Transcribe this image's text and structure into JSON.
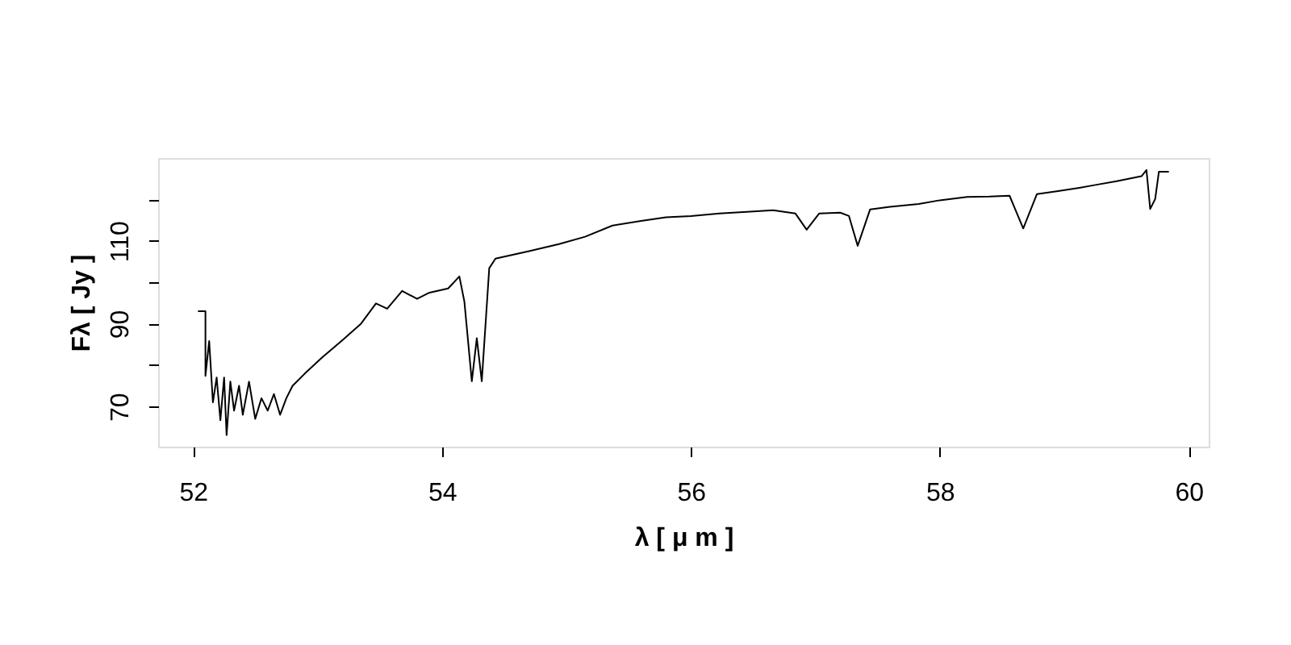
{
  "chart_data": {
    "type": "line",
    "xlabel": "λ [ μ m ]",
    "ylabel": "Fλ [ Jy ]",
    "xlim": [
      51.72,
      60.16
    ],
    "xticks": [
      52,
      54,
      56,
      58,
      60
    ],
    "ylim": [
      60.3,
      130
    ],
    "yticks": [
      70,
      {
        "value": 80,
        "label": null
      },
      90,
      {
        "value": 100,
        "label": null
      },
      110,
      {
        "value": 120,
        "label": null
      }
    ],
    "grid": false,
    "marker": "none",
    "line_style": "solid",
    "series": [
      {
        "color": "#000000",
        "x": [
          52.04,
          52.1,
          52.1,
          52.13,
          52.16,
          52.19,
          52.22,
          52.25,
          52.27,
          52.3,
          52.33,
          52.37,
          52.4,
          52.45,
          52.5,
          52.55,
          52.6,
          52.65,
          52.7,
          52.75,
          52.8,
          52.9,
          53.04,
          53.2,
          53.35,
          53.47,
          53.56,
          53.68,
          53.8,
          53.9,
          54.05,
          54.14,
          54.18,
          54.24,
          54.28,
          54.32,
          54.38,
          54.43,
          54.7,
          54.94,
          55.15,
          55.37,
          55.6,
          55.8,
          56.0,
          56.23,
          56.45,
          56.66,
          56.84,
          56.93,
          57.03,
          57.2,
          57.27,
          57.34,
          57.44,
          57.6,
          57.83,
          58.0,
          58.22,
          58.4,
          58.56,
          58.67,
          58.78,
          58.95,
          59.12,
          59.25,
          59.42,
          59.62,
          59.66,
          59.69,
          59.73,
          59.76,
          59.84
        ],
        "values": [
          93.0,
          93.0,
          77.4,
          85.8,
          71,
          77,
          66.7,
          77,
          63.1,
          76,
          69,
          75,
          68,
          76,
          67,
          72,
          69,
          73,
          68,
          72,
          75,
          78,
          81.9,
          86,
          90,
          94.9,
          93.6,
          97.9,
          96,
          97.5,
          98.5,
          101.4,
          95.4,
          76.1,
          86.5,
          76.1,
          103.4,
          105.7,
          107.5,
          109.2,
          111,
          113.7,
          114.8,
          115.7,
          116,
          116.6,
          117,
          117.4,
          116.6,
          112.7,
          116.6,
          116.8,
          116,
          108.8,
          117.6,
          118.2,
          118.9,
          119.8,
          120.6,
          120.7,
          120.9,
          113.0,
          121.3,
          122,
          122.8,
          123.5,
          124.4,
          125.6,
          127.1,
          117.7,
          120.1,
          126.7,
          126.7
        ]
      }
    ]
  }
}
